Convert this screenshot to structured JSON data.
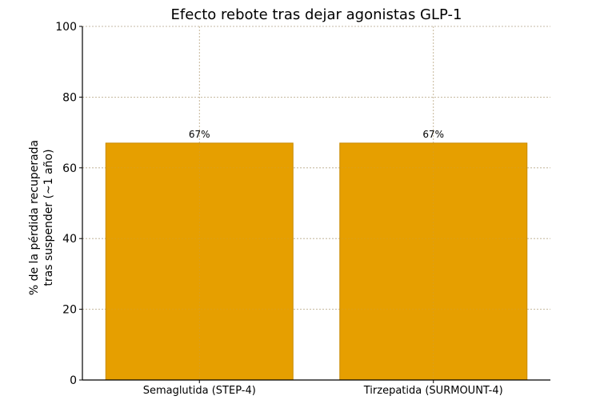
{
  "chart_data": {
    "type": "bar",
    "title": "Efecto rebote tras dejar agonistas GLP-1",
    "xlabel": "",
    "ylabel": "% de la pérdida recuperada\ntras suspender (~1 año)",
    "ylabel_lines": [
      "% de la pérdida recuperada",
      "tras suspender (~1 año)"
    ],
    "categories": [
      "Semaglutida (STEP-4)",
      "Tirzepatida (SURMOUNT-4)"
    ],
    "values": [
      67,
      67
    ],
    "data_labels": [
      "67%",
      "67%"
    ],
    "ylim": [
      0,
      100
    ],
    "yticks": [
      0,
      20,
      40,
      60,
      80,
      100
    ],
    "grid": true,
    "legend": null,
    "bar_color": "#E69F00",
    "bar_edge_color": "#C88A00"
  }
}
